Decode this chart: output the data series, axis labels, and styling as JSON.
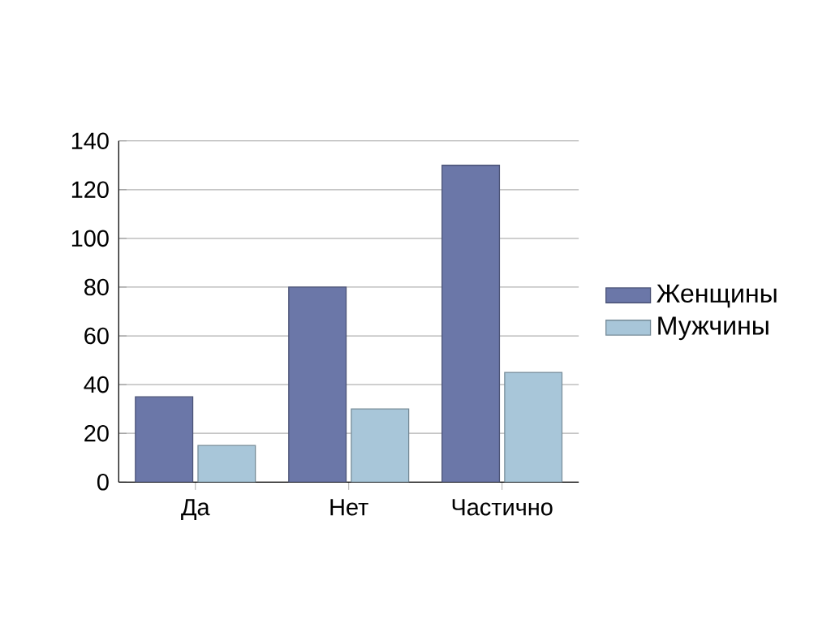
{
  "chart_data": {
    "type": "bar",
    "categories": [
      "Да",
      "Нет",
      "Частично"
    ],
    "series": [
      {
        "name": "Женщины",
        "color": "#6b77a8",
        "values": [
          35,
          80,
          130
        ]
      },
      {
        "name": "Мужчины",
        "color": "#a8c6d9",
        "values": [
          15,
          30,
          45
        ]
      }
    ],
    "ylim": [
      0,
      140
    ],
    "yticks": [
      0,
      20,
      40,
      60,
      80,
      100,
      120,
      140
    ],
    "grid": "y",
    "legend": "right"
  }
}
